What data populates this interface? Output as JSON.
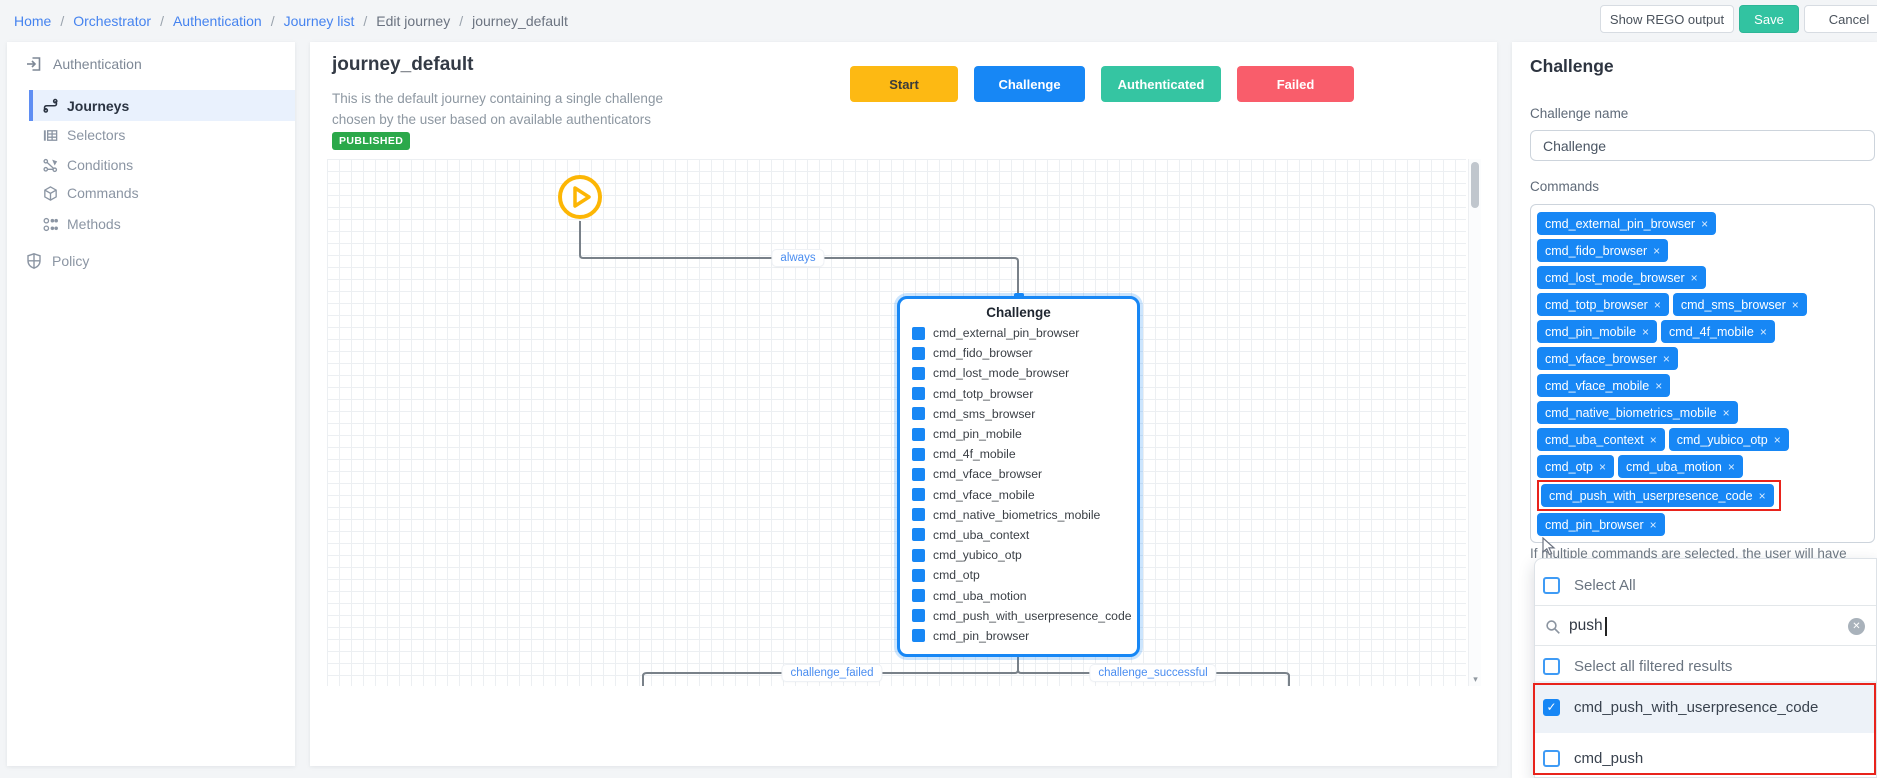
{
  "breadcrumb": {
    "separator": "/",
    "links": [
      "Home",
      "Orchestrator",
      "Authentication",
      "Journey list"
    ],
    "current": [
      "Edit journey",
      "journey_default"
    ]
  },
  "header_actions": {
    "show_rego_label": "Show REGO output",
    "save_label": "Save",
    "cancel_label": "Cancel"
  },
  "sidebar": {
    "section_label": "Authentication",
    "items": [
      "Journeys",
      "Selectors",
      "Conditions",
      "Commands",
      "Methods"
    ],
    "selected_item": "Journeys",
    "policy_label": "Policy"
  },
  "canvas": {
    "title": "journey_default",
    "description_line1": "This is the default journey containing a single challenge",
    "description_line2": "chosen by the user based on available authenticators",
    "status_badge": "PUBLISHED",
    "legend": [
      {
        "label": "Start",
        "color": "#fdb913",
        "text_color": "#3b3b3b"
      },
      {
        "label": "Challenge",
        "color": "#1787f5",
        "text_color": "#ffffff"
      },
      {
        "label": "Authenticated",
        "color": "#35c5a2",
        "text_color": "#ffffff"
      },
      {
        "label": "Failed",
        "color": "#f95d6b",
        "text_color": "#ffffff"
      }
    ],
    "edges": {
      "start_label": "always",
      "failed_label": "challenge_failed",
      "success_label": "challenge_successful"
    },
    "node": {
      "title": "Challenge",
      "commands": [
        "cmd_external_pin_browser",
        "cmd_fido_browser",
        "cmd_lost_mode_browser",
        "cmd_totp_browser",
        "cmd_sms_browser",
        "cmd_pin_mobile",
        "cmd_4f_mobile",
        "cmd_vface_browser",
        "cmd_vface_mobile",
        "cmd_native_biometrics_mobile",
        "cmd_uba_context",
        "cmd_yubico_otp",
        "cmd_otp",
        "cmd_uba_motion",
        "cmd_push_with_userpresence_code",
        "cmd_pin_browser"
      ]
    }
  },
  "panel": {
    "title": "Challenge",
    "name_label": "Challenge name",
    "name_value": "Challenge",
    "commands_label": "Commands",
    "chip_rows": [
      [
        {
          "label": "cmd_external_pin_browser"
        }
      ],
      [
        {
          "label": "cmd_fido_browser"
        }
      ],
      [
        {
          "label": "cmd_lost_mode_browser"
        }
      ],
      [
        {
          "label": "cmd_totp_browser"
        },
        {
          "label": "cmd_sms_browser"
        }
      ],
      [
        {
          "label": "cmd_pin_mobile"
        },
        {
          "label": "cmd_4f_mobile"
        }
      ],
      [
        {
          "label": "cmd_vface_browser"
        }
      ],
      [
        {
          "label": "cmd_vface_mobile"
        }
      ],
      [
        {
          "label": "cmd_native_biometrics_mobile"
        }
      ],
      [
        {
          "label": "cmd_uba_context"
        },
        {
          "label": "cmd_yubico_otp"
        }
      ],
      [
        {
          "label": "cmd_otp"
        },
        {
          "label": "cmd_uba_motion"
        }
      ],
      [
        {
          "label": "cmd_push_with_userpresence_code",
          "highlighted": true
        }
      ],
      [
        {
          "label": "cmd_pin_browser"
        }
      ]
    ],
    "note": "If multiple commands are selected, the user will have",
    "dropdown": {
      "select_all_label": "Select All",
      "search_value": "push",
      "select_filtered_label": "Select all filtered results",
      "options": [
        {
          "label": "cmd_push_with_userpresence_code",
          "checked": true,
          "highlighted": true
        },
        {
          "label": "cmd_push",
          "checked": false
        }
      ]
    }
  },
  "icons": {
    "chip_remove": "×",
    "clear": "✕",
    "check": "✓",
    "scroll_down": "▾"
  },
  "colors": {
    "accent_blue": "#1787f5",
    "teal": "#32c3a1",
    "yellow": "#fdb913",
    "failed_red": "#f95d6b",
    "badge_green": "#2ba84a",
    "annotation_red": "#e8231c"
  }
}
